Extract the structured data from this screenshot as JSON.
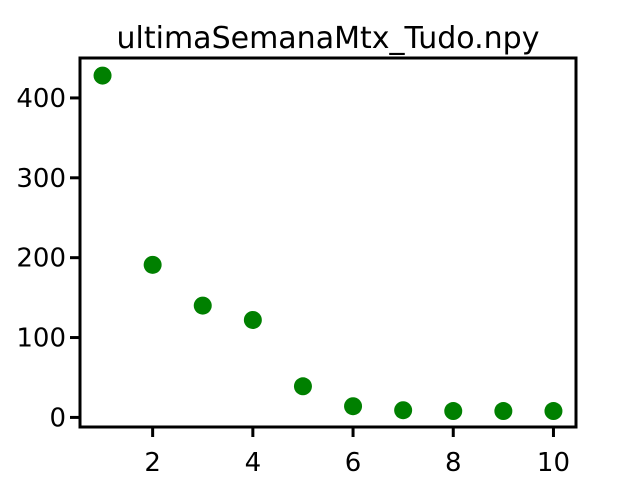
{
  "chart_data": {
    "type": "scatter",
    "title": "ultimaSemanaMtx_Tudo.npy",
    "xlabel": "",
    "ylabel": "",
    "xlim": [
      0.55,
      10.45
    ],
    "ylim": [
      -12,
      450
    ],
    "xticks": [
      2,
      4,
      6,
      8,
      10
    ],
    "yticks": [
      0,
      100,
      200,
      300,
      400
    ],
    "grid": false,
    "marker_color": "#008000",
    "x": [
      1,
      2,
      3,
      4,
      5,
      6,
      7,
      8,
      9,
      10
    ],
    "y": [
      428,
      191,
      140,
      122,
      39,
      14,
      9,
      8,
      8,
      8
    ]
  }
}
